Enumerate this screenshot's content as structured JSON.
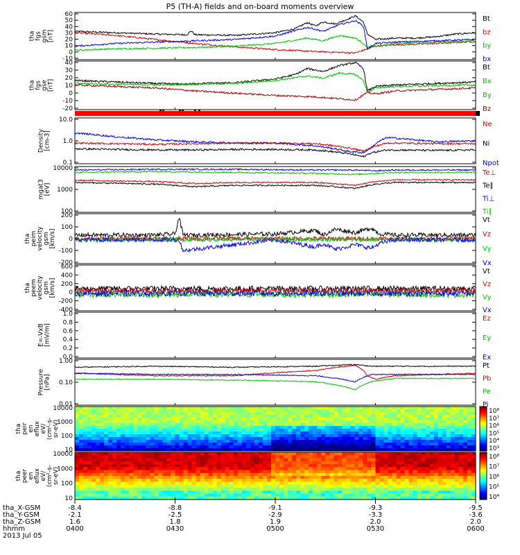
{
  "title": "P5 (TH-A) fields and on-board moments overview",
  "date_label": "2013 Jul 05",
  "colors": {
    "black": "#000000",
    "red": "#d00000",
    "dark_red": "#a00000",
    "green": "#00e000",
    "blue": "#0000dd"
  },
  "chart_data": [
    {
      "type": "line",
      "name": "fgs_gsm",
      "ylabel": [
        "tha",
        "fgs",
        "gsm",
        "[nT]"
      ],
      "yticks": [
        "60",
        "50",
        "40",
        "30",
        "20",
        "10",
        "0",
        "-10"
      ],
      "ylim": [
        -10,
        60
      ],
      "legend": [
        {
          "label": "Bt",
          "color": "#000000"
        },
        {
          "label": "bz",
          "color": "#d00000"
        },
        {
          "label": "by",
          "color": "#00c000"
        },
        {
          "label": "bx",
          "color": "#0000dd"
        }
      ],
      "series": [
        {
          "name": "Bt",
          "color": "#000000",
          "x": [
            0,
            0.1,
            0.2,
            0.28,
            0.29,
            0.3,
            0.4,
            0.5,
            0.55,
            0.58,
            0.6,
            0.62,
            0.65,
            0.68,
            0.7,
            0.72,
            0.73,
            0.75,
            0.8,
            0.85,
            0.9,
            0.95,
            1.0
          ],
          "y": [
            32,
            30,
            28,
            27,
            33,
            27,
            26,
            30,
            36,
            45,
            40,
            46,
            43,
            50,
            55,
            46,
            28,
            20,
            22,
            22,
            24,
            28,
            30
          ]
        },
        {
          "name": "bz",
          "color": "#d00000",
          "x": [
            0,
            0.1,
            0.2,
            0.3,
            0.4,
            0.5,
            0.6,
            0.7,
            0.73,
            0.75,
            0.8,
            0.9,
            1.0
          ],
          "y": [
            30,
            26,
            20,
            14,
            9,
            5,
            2,
            0,
            6,
            10,
            12,
            14,
            17
          ]
        },
        {
          "name": "by",
          "color": "#00c000",
          "x": [
            0,
            0.1,
            0.2,
            0.3,
            0.4,
            0.5,
            0.58,
            0.62,
            0.66,
            0.7,
            0.72,
            0.73,
            0.75,
            0.8,
            0.9,
            1.0
          ],
          "y": [
            4,
            6,
            7,
            8,
            10,
            14,
            22,
            18,
            26,
            22,
            14,
            8,
            10,
            14,
            16,
            18
          ]
        },
        {
          "name": "bx",
          "color": "#0000dd",
          "x": [
            0,
            0.05,
            0.1,
            0.2,
            0.3,
            0.4,
            0.5,
            0.58,
            0.62,
            0.66,
            0.7,
            0.72,
            0.73,
            0.75,
            0.8,
            0.9,
            1.0
          ],
          "y": [
            10,
            12,
            14,
            16,
            18,
            20,
            25,
            38,
            32,
            42,
            48,
            40,
            6,
            14,
            16,
            18,
            20
          ]
        }
      ]
    },
    {
      "type": "line",
      "name": "fgs_gse",
      "ylabel": [
        "tha",
        "fgs",
        "gse",
        "[nT]"
      ],
      "yticks": [
        "40",
        "30",
        "20",
        "10",
        "0",
        "-10",
        "-20"
      ],
      "ylim": [
        -25,
        40
      ],
      "legend": [
        {
          "label": "Bt",
          "color": "#000000"
        },
        {
          "label": "Bx",
          "color": "#00c000"
        },
        {
          "label": "By",
          "color": "#00c000"
        },
        {
          "label": "Bz",
          "color": "#a00000"
        }
      ],
      "series": [
        {
          "name": "Bt",
          "color": "#000000",
          "x": [
            0,
            0.1,
            0.2,
            0.28,
            0.3,
            0.4,
            0.5,
            0.55,
            0.58,
            0.62,
            0.66,
            0.7,
            0.72,
            0.73,
            0.75,
            0.8,
            0.9,
            1.0
          ],
          "y": [
            14,
            12,
            10,
            9,
            10,
            11,
            16,
            22,
            30,
            26,
            34,
            38,
            30,
            0,
            6,
            8,
            10,
            12
          ]
        },
        {
          "name": "By",
          "color": "#00c000",
          "x": [
            0,
            0.1,
            0.2,
            0.3,
            0.4,
            0.5,
            0.58,
            0.62,
            0.66,
            0.7,
            0.72,
            0.73,
            0.75,
            0.8,
            0.9,
            1.0
          ],
          "y": [
            10,
            9,
            8,
            9,
            10,
            14,
            20,
            17,
            24,
            22,
            14,
            -2,
            4,
            6,
            7,
            8
          ]
        },
        {
          "name": "Bz",
          "color": "#a00000",
          "x": [
            0,
            0.1,
            0.2,
            0.3,
            0.4,
            0.5,
            0.6,
            0.7,
            0.73,
            0.75,
            0.8,
            0.9,
            1.0
          ],
          "y": [
            8,
            6,
            4,
            0,
            -3,
            -6,
            -8,
            -12,
            -2,
            -4,
            0,
            2,
            4
          ]
        }
      ]
    },
    {
      "type": "line",
      "name": "density",
      "ylabel": [
        "Density",
        "[cm-3]"
      ],
      "yticks": [
        "10.0",
        "1.0",
        "0.1"
      ],
      "scale": "log",
      "ylim": [
        0.1,
        10
      ],
      "legend": [
        {
          "label": "Ne",
          "color": "#d00000"
        },
        {
          "label": "Ni",
          "color": "#000000"
        },
        {
          "label": "Npot",
          "color": "#0000dd"
        }
      ],
      "series": [
        {
          "name": "Npot",
          "color": "#0000dd",
          "x": [
            0,
            0.1,
            0.2,
            0.3,
            0.4,
            0.5,
            0.6,
            0.68,
            0.72,
            0.74,
            0.78,
            0.8,
            0.9,
            1.0
          ],
          "y": [
            2.2,
            1.5,
            1.1,
            0.9,
            0.8,
            0.8,
            0.6,
            0.35,
            0.3,
            0.5,
            1.4,
            1.3,
            0.9,
            1.0
          ]
        },
        {
          "name": "Ne",
          "color": "#d00000",
          "x": [
            0,
            0.1,
            0.2,
            0.3,
            0.4,
            0.5,
            0.6,
            0.68,
            0.72,
            0.74,
            0.78,
            0.8,
            0.9,
            1.0
          ],
          "y": [
            0.8,
            0.75,
            0.7,
            0.75,
            0.8,
            0.8,
            0.75,
            0.5,
            0.35,
            0.5,
            0.8,
            0.8,
            0.75,
            0.75
          ]
        },
        {
          "name": "Ni",
          "color": "#000000",
          "x": [
            0,
            0.1,
            0.2,
            0.3,
            0.4,
            0.5,
            0.6,
            0.68,
            0.72,
            0.74,
            0.78,
            0.8,
            0.9,
            1.0
          ],
          "y": [
            0.45,
            0.42,
            0.4,
            0.4,
            0.42,
            0.42,
            0.4,
            0.28,
            0.2,
            0.3,
            0.4,
            0.4,
            0.38,
            0.4
          ]
        }
      ]
    },
    {
      "type": "line",
      "name": "temperature",
      "ylabel": [
        "mgat3",
        "[eV]"
      ],
      "yticks": [
        "10000",
        "1000",
        "100"
      ],
      "scale": "log",
      "ylim": [
        100,
        10000
      ],
      "legend": [
        {
          "label": "Te⊥",
          "color": "#d00000"
        },
        {
          "label": "Te∥",
          "color": "#000000"
        },
        {
          "label": "Ti⊥",
          "color": "#0000dd"
        },
        {
          "label": "Ti∥",
          "color": "#00c000"
        }
      ],
      "series": [
        {
          "name": "Ti⊥",
          "color": "#0000dd",
          "x": [
            0,
            0.2,
            0.4,
            0.6,
            0.7,
            0.75,
            0.8,
            1.0
          ],
          "y": [
            7000,
            7500,
            7500,
            7000,
            7000,
            6500,
            7000,
            7000
          ]
        },
        {
          "name": "Ti∥",
          "color": "#00c000",
          "x": [
            0,
            0.2,
            0.4,
            0.6,
            0.7,
            0.75,
            0.8,
            1.0
          ],
          "y": [
            5500,
            6000,
            5500,
            5000,
            4500,
            5000,
            5500,
            5500
          ]
        },
        {
          "name": "Te⊥",
          "color": "#d00000",
          "x": [
            0,
            0.2,
            0.3,
            0.4,
            0.6,
            0.7,
            0.75,
            0.8,
            1.0
          ],
          "y": [
            2500,
            2200,
            1800,
            2000,
            2000,
            1500,
            2200,
            2600,
            2600
          ]
        },
        {
          "name": "Te∥",
          "color": "#000000",
          "x": [
            0,
            0.2,
            0.3,
            0.4,
            0.6,
            0.7,
            0.75,
            0.8,
            1.0
          ],
          "y": [
            2000,
            1700,
            1300,
            1500,
            1500,
            1100,
            1700,
            2000,
            2000
          ]
        }
      ]
    },
    {
      "type": "line",
      "name": "peim_velocity",
      "ylabel": [
        "tha",
        "peim",
        "velocity",
        "gsm",
        "[km/s]"
      ],
      "yticks": [
        "200",
        "100",
        "0",
        "-100",
        "-200"
      ],
      "ylim": [
        -200,
        220
      ],
      "legend": [
        {
          "label": "Vt",
          "color": "#000000"
        },
        {
          "label": "Vz",
          "color": "#d00000"
        },
        {
          "label": "Vy",
          "color": "#00c000"
        },
        {
          "label": "Vx",
          "color": "#0000dd"
        }
      ],
      "series": [
        {
          "name": "Vt",
          "color": "#000000",
          "x": [
            0,
            0.2,
            0.25,
            0.26,
            0.27,
            0.3,
            0.5,
            0.6,
            0.62,
            0.65,
            0.7,
            0.74,
            0.76,
            0.8,
            1.0
          ],
          "y": [
            40,
            40,
            50,
            190,
            40,
            40,
            50,
            80,
            40,
            90,
            60,
            100,
            50,
            40,
            40
          ]
        },
        {
          "name": "Vz",
          "color": "#d00000",
          "x": [
            0,
            0.5,
            1.0
          ],
          "y": [
            10,
            10,
            10
          ]
        },
        {
          "name": "Vy",
          "color": "#00c000",
          "x": [
            0,
            0.5,
            1.0
          ],
          "y": [
            0,
            5,
            0
          ]
        },
        {
          "name": "Vx",
          "color": "#0000dd",
          "x": [
            0,
            0.26,
            0.27,
            0.5,
            0.6,
            0.62,
            0.65,
            0.7,
            0.74,
            0.76,
            0.8,
            1.0
          ],
          "y": [
            0,
            0,
            -90,
            0,
            -60,
            -30,
            -80,
            -40,
            -70,
            -30,
            0,
            0
          ]
        }
      ]
    },
    {
      "type": "line",
      "name": "peem_velocity",
      "ylabel": [
        "tha",
        "peem",
        "velocity",
        "gsm",
        "[km/s]"
      ],
      "yticks": [
        "600",
        "400",
        "200",
        "0",
        "-200",
        "-400"
      ],
      "ylim": [
        -450,
        650
      ],
      "legend": [
        {
          "label": "Vt",
          "color": "#000000"
        },
        {
          "label": "Vz",
          "color": "#d00000"
        },
        {
          "label": "Vy",
          "color": "#00c000"
        },
        {
          "label": "Vx",
          "color": "#0000dd"
        }
      ],
      "series": [
        {
          "name": "Vt",
          "color": "#000000",
          "x": [
            0,
            1
          ],
          "y": [
            80,
            80
          ]
        },
        {
          "name": "Vz",
          "color": "#d00000",
          "x": [
            0,
            1
          ],
          "y": [
            30,
            30
          ]
        },
        {
          "name": "Vy",
          "color": "#00c000",
          "x": [
            0,
            1
          ],
          "y": [
            -60,
            -60
          ]
        },
        {
          "name": "Vx",
          "color": "#0000dd",
          "x": [
            0,
            1
          ],
          "y": [
            -30,
            -30
          ]
        }
      ]
    },
    {
      "type": "line",
      "name": "e_vxb",
      "ylabel": [
        "E=-VxB",
        "[mV/m]"
      ],
      "yticks": [
        "1.0",
        "0.8",
        "0.6",
        "0.4",
        "0.2",
        "0.0"
      ],
      "ylim": [
        0,
        1
      ],
      "legend": [
        {
          "label": "Ez",
          "color": "#d00000"
        },
        {
          "label": "Ey",
          "color": "#00c000"
        },
        {
          "label": "Ex",
          "color": "#0000dd"
        }
      ],
      "series": []
    },
    {
      "type": "line",
      "name": "pressure",
      "ylabel": [
        "Pressure",
        "[nPa]"
      ],
      "yticks": [
        "1.00",
        "0.10",
        "0.01"
      ],
      "scale": "log",
      "ylim": [
        0.01,
        2
      ],
      "legend": [
        {
          "label": "Pt",
          "color": "#000000"
        },
        {
          "label": "Pb",
          "color": "#d00000"
        },
        {
          "label": "Pe",
          "color": "#00c000"
        },
        {
          "label": "Pi",
          "color": "#0000dd"
        }
      ],
      "series": [
        {
          "name": "Pt",
          "color": "#000000",
          "x": [
            0,
            0.2,
            0.4,
            0.6,
            0.7,
            0.74,
            0.8,
            1.0
          ],
          "y": [
            0.8,
            0.9,
            0.8,
            0.9,
            1.1,
            0.9,
            0.9,
            0.9
          ]
        },
        {
          "name": "Pb",
          "color": "#d00000",
          "x": [
            0,
            0.2,
            0.4,
            0.6,
            0.7,
            0.73,
            0.75,
            0.8,
            1.0
          ],
          "y": [
            0.4,
            0.3,
            0.3,
            0.55,
            1.0,
            0.3,
            0.2,
            0.3,
            0.4
          ]
        },
        {
          "name": "Pi",
          "color": "#0000dd",
          "x": [
            0,
            0.2,
            0.4,
            0.6,
            0.7,
            0.74,
            0.8,
            1.0
          ],
          "y": [
            0.4,
            0.35,
            0.35,
            0.3,
            0.15,
            0.35,
            0.35,
            0.35
          ]
        },
        {
          "name": "Pe",
          "color": "#00c000",
          "x": [
            0,
            0.2,
            0.4,
            0.6,
            0.7,
            0.74,
            0.8,
            1.0
          ],
          "y": [
            0.2,
            0.2,
            0.18,
            0.15,
            0.06,
            0.15,
            0.22,
            0.22
          ]
        }
      ]
    },
    {
      "type": "heatmap",
      "name": "peir_en_eflux",
      "ylabel": [
        "tha",
        "peir",
        "en",
        "eflux",
        "eV/",
        "(cm²-s-",
        "sr-eV)"
      ],
      "yticks": [
        "10000",
        "1000",
        "100",
        "10"
      ],
      "scale": "log",
      "colorbar_ticks": [
        "10⁸",
        "10⁷",
        "10⁶",
        "10⁵",
        "10⁴",
        "10³"
      ]
    },
    {
      "type": "heatmap",
      "name": "peer_en_eflux",
      "ylabel": [
        "tha",
        "peer",
        "en",
        "eflux",
        "eV/",
        "(cm²-s-",
        "sr-eV)"
      ],
      "yticks": [
        "10000",
        "1000",
        "100",
        "10"
      ],
      "scale": "log",
      "colorbar_ticks": [
        "10⁸",
        "10⁷",
        "10⁶",
        "10⁵",
        "10⁴"
      ]
    }
  ],
  "xaxis": {
    "rows": [
      {
        "label": "tha_X-GSM",
        "values": [
          "-8.4",
          "-8.8",
          "-9.1",
          "-9.3",
          "-9.5"
        ]
      },
      {
        "label": "tha_Y-GSM",
        "values": [
          "-2.1",
          "-2.5",
          "-2.9",
          "-3.3",
          "-3.6"
        ]
      },
      {
        "label": "tha_Z-GSM",
        "values": [
          "1.6",
          "1.8",
          "1.9",
          "2.0",
          "2.0"
        ]
      },
      {
        "label": "hhmm",
        "values": [
          "0400",
          "0430",
          "0500",
          "0530",
          "0600"
        ]
      }
    ]
  }
}
